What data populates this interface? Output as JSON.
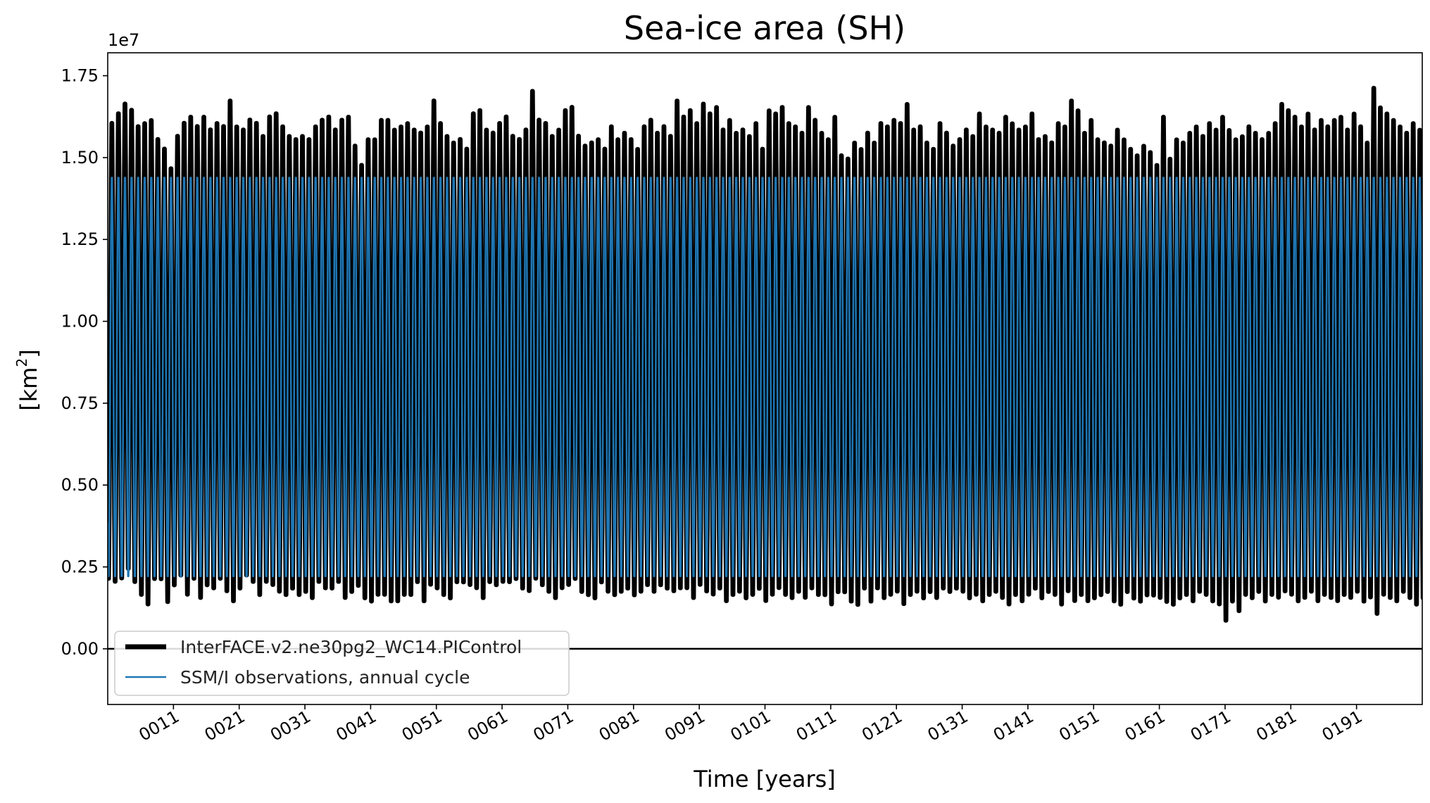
{
  "chart_data": {
    "type": "line",
    "title": "Sea-ice area (SH)",
    "xlabel": "Time [years]",
    "ylabel_main": "[km",
    "ylabel_sup": "2",
    "ylabel_close": "]",
    "y_offset_label": "1e7",
    "ylim": [
      -0.17,
      1.82
    ],
    "xlim": [
      1.0,
      201.0
    ],
    "y_ticks": [
      0.0,
      0.25,
      0.5,
      0.75,
      1.0,
      1.25,
      1.5,
      1.75
    ],
    "y_tick_labels": [
      "0.00",
      "0.25",
      "0.50",
      "0.75",
      "1.00",
      "1.25",
      "1.50",
      "1.75"
    ],
    "x_ticks": [
      11,
      21,
      31,
      41,
      51,
      61,
      71,
      81,
      91,
      101,
      111,
      121,
      131,
      141,
      151,
      161,
      171,
      181,
      191
    ],
    "x_tick_labels": [
      "0011",
      "0021",
      "0031",
      "0041",
      "0051",
      "0061",
      "0071",
      "0081",
      "0091",
      "0101",
      "0111",
      "0121",
      "0131",
      "0141",
      "0151",
      "0161",
      "0171",
      "0181",
      "0191"
    ],
    "hline": 0.0,
    "legend_placement": "lower-left",
    "grid": false,
    "series": [
      {
        "name": "InterFACE.v2.ne30pg2_WC14.PIControl",
        "color": "#000000",
        "kind": "monthly",
        "annual_max": [
          1.63,
          1.66,
          1.69,
          1.67,
          1.62,
          1.63,
          1.64,
          1.58,
          1.55,
          1.49,
          1.59,
          1.63,
          1.65,
          1.62,
          1.65,
          1.61,
          1.63,
          1.62,
          1.7,
          1.62,
          1.61,
          1.64,
          1.63,
          1.59,
          1.65,
          1.66,
          1.62,
          1.59,
          1.58,
          1.59,
          1.58,
          1.62,
          1.64,
          1.65,
          1.61,
          1.64,
          1.65,
          1.56,
          1.5,
          1.58,
          1.58,
          1.64,
          1.64,
          1.61,
          1.62,
          1.63,
          1.61,
          1.6,
          1.62,
          1.7,
          1.63,
          1.59,
          1.57,
          1.58,
          1.55,
          1.66,
          1.67,
          1.61,
          1.6,
          1.63,
          1.65,
          1.59,
          1.58,
          1.61,
          1.73,
          1.64,
          1.63,
          1.59,
          1.61,
          1.67,
          1.68,
          1.59,
          1.56,
          1.57,
          1.58,
          1.55,
          1.62,
          1.58,
          1.6,
          1.58,
          1.55,
          1.62,
          1.64,
          1.6,
          1.62,
          1.59,
          1.7,
          1.65,
          1.67,
          1.63,
          1.69,
          1.66,
          1.68,
          1.61,
          1.64,
          1.6,
          1.61,
          1.59,
          1.63,
          1.55,
          1.67,
          1.66,
          1.68,
          1.63,
          1.62,
          1.6,
          1.68,
          1.64,
          1.6,
          1.58,
          1.65,
          1.53,
          1.52,
          1.57,
          1.55,
          1.6,
          1.57,
          1.63,
          1.62,
          1.64,
          1.63,
          1.69,
          1.61,
          1.62,
          1.57,
          1.55,
          1.63,
          1.6,
          1.56,
          1.58,
          1.61,
          1.59,
          1.66,
          1.62,
          1.61,
          1.6,
          1.65,
          1.63,
          1.61,
          1.62,
          1.66,
          1.58,
          1.59,
          1.57,
          1.63,
          1.62,
          1.7,
          1.67,
          1.6,
          1.64,
          1.58,
          1.57,
          1.56,
          1.61,
          1.58,
          1.55,
          1.53,
          1.56,
          1.54,
          1.5,
          1.65,
          1.52,
          1.58,
          1.57,
          1.6,
          1.62,
          1.59,
          1.63,
          1.61,
          1.65,
          1.61,
          1.58,
          1.59,
          1.62,
          1.6,
          1.58,
          1.6,
          1.63,
          1.69,
          1.67,
          1.65,
          1.62,
          1.66,
          1.61,
          1.64,
          1.62,
          1.64,
          1.65,
          1.61,
          1.66,
          1.62,
          1.57,
          1.74,
          1.68,
          1.66,
          1.64,
          1.62,
          1.6,
          1.63,
          1.61,
          1.58
        ],
        "annual_min": [
          0.19,
          0.18,
          0.19,
          0.22,
          0.18,
          0.14,
          0.11,
          0.19,
          0.19,
          0.12,
          0.17,
          0.2,
          0.14,
          0.19,
          0.13,
          0.17,
          0.16,
          0.19,
          0.15,
          0.12,
          0.16,
          0.2,
          0.18,
          0.14,
          0.18,
          0.17,
          0.15,
          0.14,
          0.16,
          0.14,
          0.15,
          0.13,
          0.18,
          0.16,
          0.16,
          0.18,
          0.13,
          0.15,
          0.17,
          0.13,
          0.12,
          0.14,
          0.14,
          0.12,
          0.12,
          0.14,
          0.14,
          0.18,
          0.12,
          0.17,
          0.16,
          0.14,
          0.13,
          0.18,
          0.18,
          0.17,
          0.16,
          0.13,
          0.18,
          0.17,
          0.18,
          0.18,
          0.19,
          0.16,
          0.15,
          0.19,
          0.17,
          0.15,
          0.13,
          0.16,
          0.17,
          0.19,
          0.15,
          0.14,
          0.13,
          0.18,
          0.15,
          0.14,
          0.15,
          0.16,
          0.14,
          0.15,
          0.17,
          0.15,
          0.17,
          0.16,
          0.15,
          0.16,
          0.16,
          0.13,
          0.17,
          0.15,
          0.14,
          0.16,
          0.12,
          0.14,
          0.15,
          0.13,
          0.14,
          0.16,
          0.12,
          0.14,
          0.16,
          0.14,
          0.13,
          0.15,
          0.13,
          0.16,
          0.14,
          0.14,
          0.11,
          0.15,
          0.15,
          0.12,
          0.11,
          0.16,
          0.12,
          0.16,
          0.13,
          0.14,
          0.15,
          0.11,
          0.14,
          0.15,
          0.13,
          0.15,
          0.13,
          0.16,
          0.15,
          0.16,
          0.15,
          0.13,
          0.14,
          0.12,
          0.14,
          0.15,
          0.13,
          0.11,
          0.14,
          0.12,
          0.14,
          0.16,
          0.13,
          0.15,
          0.14,
          0.11,
          0.15,
          0.12,
          0.14,
          0.12,
          0.13,
          0.14,
          0.15,
          0.12,
          0.11,
          0.15,
          0.13,
          0.12,
          0.14,
          0.14,
          0.13,
          0.12,
          0.11,
          0.13,
          0.14,
          0.12,
          0.15,
          0.14,
          0.12,
          0.11,
          0.06,
          0.12,
          0.09,
          0.14,
          0.13,
          0.15,
          0.12,
          0.14,
          0.13,
          0.15,
          0.14,
          0.12,
          0.13,
          0.15,
          0.12,
          0.14,
          0.13,
          0.12,
          0.14,
          0.13,
          0.15,
          0.12,
          0.13,
          0.08,
          0.14,
          0.13,
          0.12,
          0.15,
          0.13,
          0.11,
          0.13,
          0.12,
          0.14,
          0.13
        ]
      },
      {
        "name": "SSM/I observations, annual cycle",
        "color": "#1f77b4",
        "kind": "annual_cycle",
        "cycle_max": 1.46,
        "cycle_min": 0.2
      }
    ]
  }
}
